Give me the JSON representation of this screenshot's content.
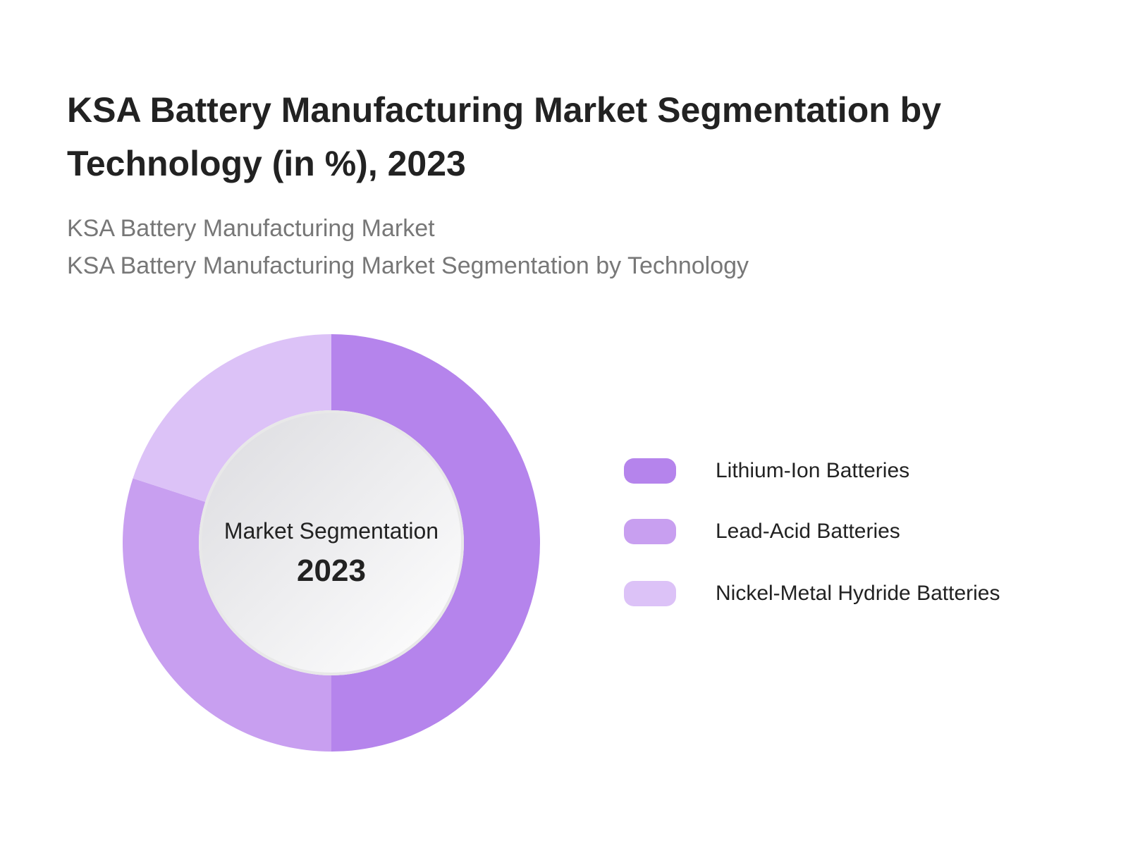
{
  "title": "KSA Battery Manufacturing Market Segmentation by Technology (in %), 2023",
  "subtitles": [
    "KSA Battery Manufacturing Market",
    "KSA Battery Manufacturing Market Segmentation by Technology"
  ],
  "chart_data": {
    "type": "pie",
    "donut": true,
    "center_label": "Market Segmentation",
    "center_value": "2023",
    "legend_position": "right",
    "categories": [
      "Lithium-Ion Batteries",
      "Lead-Acid Batteries",
      "Nickel-Metal Hydride Batteries"
    ],
    "values": [
      50,
      30,
      20
    ],
    "colors": [
      "#b584ec",
      "#c89ff0",
      "#dcc2f7"
    ]
  }
}
